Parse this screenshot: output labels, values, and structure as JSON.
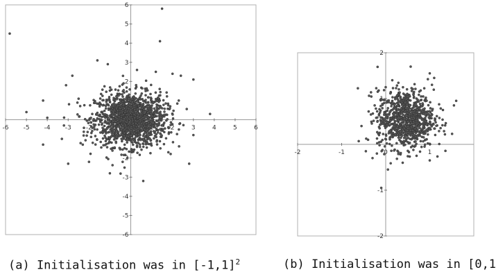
{
  "captions": {
    "a": {
      "text": "(a) Initialisation was in [-1,1]",
      "sup": "2"
    },
    "b": {
      "text": "(b) Initialisation was in [0,1"
    }
  },
  "chart_data": [
    {
      "type": "scatter",
      "title": "",
      "xlabel": "",
      "ylabel": "",
      "xlim": [
        -6,
        6
      ],
      "ylim": [
        -6,
        6
      ],
      "xticks": [
        -6,
        -5,
        -4,
        -3,
        -2,
        -1,
        0,
        1,
        2,
        3,
        4,
        5,
        6
      ],
      "yticks": [
        -6,
        -5,
        -4,
        -3,
        -2,
        -1,
        1,
        2,
        3,
        4,
        5,
        6
      ],
      "grid": false,
      "marker_color": "#555555",
      "dense_cluster": {
        "center": [
          0,
          0
        ],
        "std": [
          0.85,
          0.7
        ],
        "approx_points": 1500
      },
      "points": [
        [
          -5.8,
          4.5
        ],
        [
          1.4,
          4.1
        ],
        [
          -1.6,
          3.1
        ],
        [
          1.5,
          5.8
        ],
        [
          -2.8,
          2.3
        ],
        [
          -3.1,
          1.8
        ],
        [
          -4.2,
          1.0
        ],
        [
          -5.0,
          0.4
        ],
        [
          -4.0,
          0.1
        ],
        [
          -3.2,
          -0.3
        ],
        [
          -4.2,
          -1.3
        ],
        [
          -3.3,
          -1.0
        ],
        [
          -3.0,
          -2.3
        ],
        [
          2.4,
          2.3
        ],
        [
          3.0,
          2.1
        ],
        [
          3.8,
          0.3
        ],
        [
          3.0,
          -0.8
        ],
        [
          2.8,
          -2.3
        ],
        [
          0.6,
          -3.2
        ],
        [
          -0.3,
          -2.5
        ],
        [
          -1.0,
          -2.8
        ],
        [
          -2.0,
          -2.2
        ],
        [
          2.0,
          2.4
        ],
        [
          1.2,
          2.5
        ],
        [
          -1.1,
          2.9
        ],
        [
          0.3,
          2.6
        ],
        [
          2.3,
          1.0
        ],
        [
          -2.5,
          1.1
        ],
        [
          -2.3,
          -1.3
        ],
        [
          1.8,
          -1.7
        ]
      ]
    },
    {
      "type": "scatter",
      "title": "",
      "xlabel": "",
      "ylabel": "",
      "xlim": [
        -2,
        2
      ],
      "ylim": [
        -2,
        2
      ],
      "xticks": [
        -2,
        -1,
        0,
        1
      ],
      "yticks": [
        -2,
        -1,
        1,
        2
      ],
      "grid": false,
      "marker_color": "#555555",
      "dense_cluster": {
        "center": [
          0.45,
          0.55
        ],
        "std": [
          0.32,
          0.32
        ],
        "approx_points": 900
      },
      "points": [
        [
          1.0,
          1.55
        ],
        [
          1.1,
          1.45
        ],
        [
          1.05,
          1.3
        ],
        [
          1.6,
          0.95
        ],
        [
          1.55,
          0.85
        ],
        [
          1.3,
          0.75
        ],
        [
          -0.55,
          0.4
        ],
        [
          -0.4,
          0.1
        ],
        [
          -0.45,
          -0.15
        ],
        [
          -0.3,
          -0.3
        ],
        [
          0.05,
          -0.55
        ],
        [
          0.35,
          0.05
        ],
        [
          1.0,
          -0.35
        ],
        [
          0.7,
          -0.25
        ],
        [
          -0.2,
          -0.2
        ],
        [
          0.15,
          1.4
        ],
        [
          0.3,
          1.2
        ],
        [
          -0.25,
          0.85
        ],
        [
          -0.1,
          -0.95
        ],
        [
          0.9,
          0.1
        ]
      ]
    }
  ]
}
